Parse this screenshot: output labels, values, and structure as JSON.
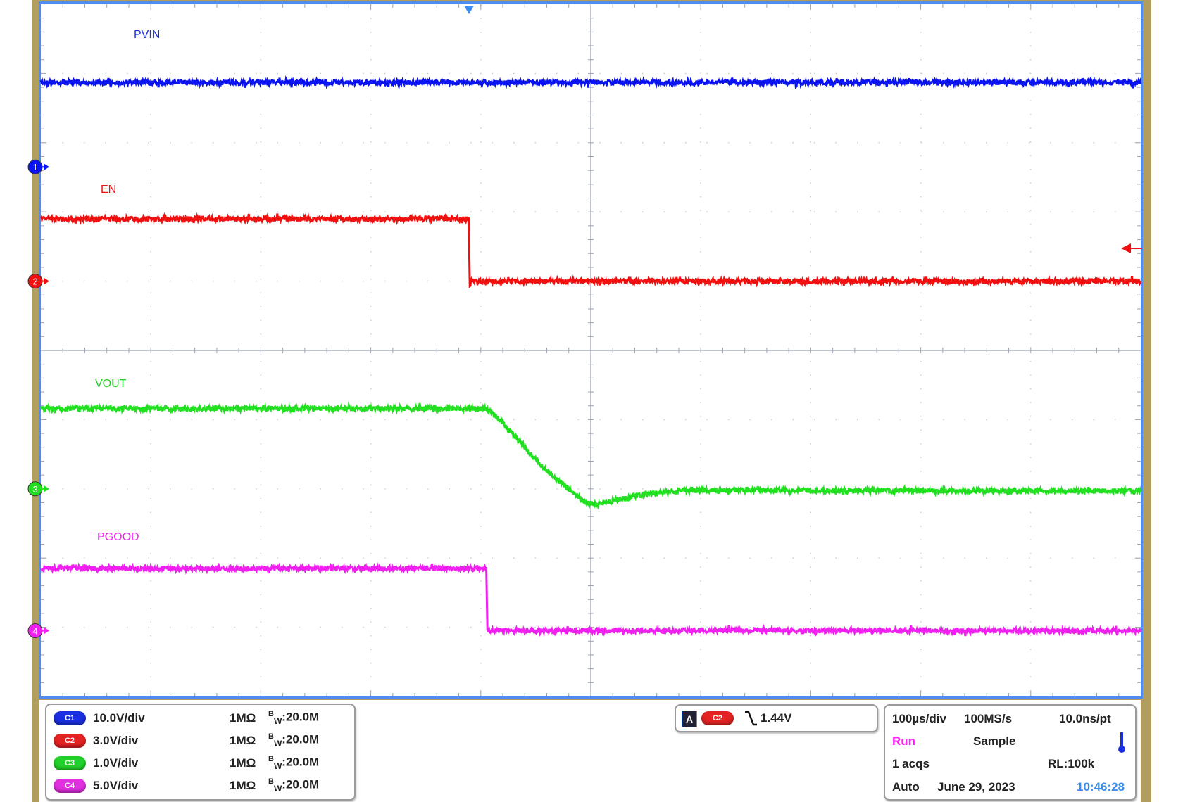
{
  "chart_data": {
    "type": "line",
    "instrument": "oscilloscope",
    "grid": true,
    "divisions": {
      "horizontal": 10,
      "vertical": 10
    },
    "xlabel": "",
    "x_unit": "µs",
    "xlim": [
      -500,
      500
    ],
    "trigger_time_us": -111,
    "series": [
      {
        "name": "PVIN",
        "channel": "C1",
        "color": "#0a14f0",
        "volts_per_div": 10.0,
        "ground_div": 2.65,
        "points": [
          [
            -500,
            12.2
          ],
          [
            500,
            12.2
          ]
        ]
      },
      {
        "name": "EN",
        "channel": "C2",
        "color": "#f01010",
        "volts_per_div": 3.0,
        "ground_div": 1.0,
        "points": [
          [
            -500,
            2.7
          ],
          [
            -111,
            2.7
          ],
          [
            -110,
            -0.3
          ],
          [
            -109,
            0.0
          ],
          [
            500,
            0.0
          ]
        ]
      },
      {
        "name": "VOUT",
        "channel": "C3",
        "color": "#20e020",
        "volts_per_div": 1.0,
        "ground_div": -2.0,
        "points": [
          [
            -500,
            1.16
          ],
          [
            -95,
            1.16
          ],
          [
            -80,
            0.95
          ],
          [
            -60,
            0.6
          ],
          [
            -40,
            0.25
          ],
          [
            -20,
            0.0
          ],
          [
            -5,
            -0.2
          ],
          [
            5,
            -0.22
          ],
          [
            20,
            -0.17
          ],
          [
            50,
            -0.08
          ],
          [
            80,
            -0.03
          ],
          [
            130,
            -0.02
          ],
          [
            200,
            -0.03
          ],
          [
            500,
            -0.03
          ]
        ]
      },
      {
        "name": "PGOOD",
        "channel": "C4",
        "color": "#f020f0",
        "volts_per_div": 5.0,
        "ground_div": -4.05,
        "points": [
          [
            -500,
            4.5
          ],
          [
            -95,
            4.5
          ],
          [
            -94,
            0.0
          ],
          [
            500,
            0.0
          ]
        ]
      }
    ]
  },
  "trace_labels": {
    "pvin": "PVIN",
    "en": "EN",
    "vout": "VOUT",
    "pgood": "PGOOD"
  },
  "channel_markers": [
    "1",
    "2",
    "3",
    "4"
  ],
  "channels": [
    {
      "tag": "C1",
      "scale": "10.0V/div",
      "impedance": "1MΩ",
      "bw_prefix": "B",
      "bw_sub": "W",
      "bw": ":20.0M",
      "color": "#1a2fe0"
    },
    {
      "tag": "C2",
      "scale": "3.0V/div",
      "impedance": "1MΩ",
      "bw_prefix": "B",
      "bw_sub": "W",
      "bw": ":20.0M",
      "color": "#e42222"
    },
    {
      "tag": "C3",
      "scale": "1.0V/div",
      "impedance": "1MΩ",
      "bw_prefix": "B",
      "bw_sub": "W",
      "bw": ":20.0M",
      "color": "#22d22a"
    },
    {
      "tag": "C4",
      "scale": "5.0V/div",
      "impedance": "1MΩ",
      "bw_prefix": "B",
      "bw_sub": "W",
      "bw": ":20.0M",
      "color": "#e030e0"
    }
  ],
  "trigger": {
    "mode_badge": "A",
    "source": "C2",
    "slope": "falling",
    "level": "1.44V"
  },
  "acquisition": {
    "timebase": "100µs/div",
    "sample_rate": "100MS/s",
    "resolution": "10.0ns/pt",
    "state": "Run",
    "mode": "Sample",
    "acqs": "1 acqs",
    "record_length": "RL:100k",
    "trigger_mode": "Auto",
    "date": "June 29, 2023",
    "time": "10:46:28",
    "state_color": "#ff20ff",
    "time_color": "#3a8cf0"
  }
}
